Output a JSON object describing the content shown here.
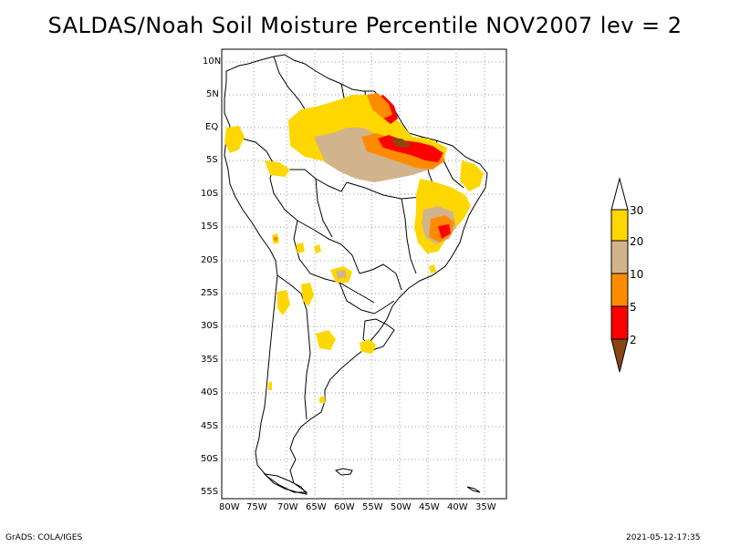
{
  "title": "SALDAS/Noah Soil Moisture Percentile NOV2007 lev = 2",
  "latitude_labels": [
    "10N",
    "5N",
    "EQ",
    "5S",
    "10S",
    "15S",
    "20S",
    "25S",
    "30S",
    "35S",
    "40S",
    "45S",
    "50S",
    "55S"
  ],
  "longitude_labels": [
    "80W",
    "75W",
    "70W",
    "65W",
    "60W",
    "55W",
    "50W",
    "45W",
    "40W",
    "35W"
  ],
  "colorbar": {
    "tick_labels": [
      "2",
      "5",
      "10",
      "20",
      "30"
    ],
    "colors": [
      "#8b4513",
      "#ff0000",
      "#ff8c00",
      "#d2b48c",
      "#ffd700",
      "#ffffff"
    ]
  },
  "footer": {
    "left": "GrADS: COLA/IGES",
    "right": "2021-05-12-17:35"
  }
}
